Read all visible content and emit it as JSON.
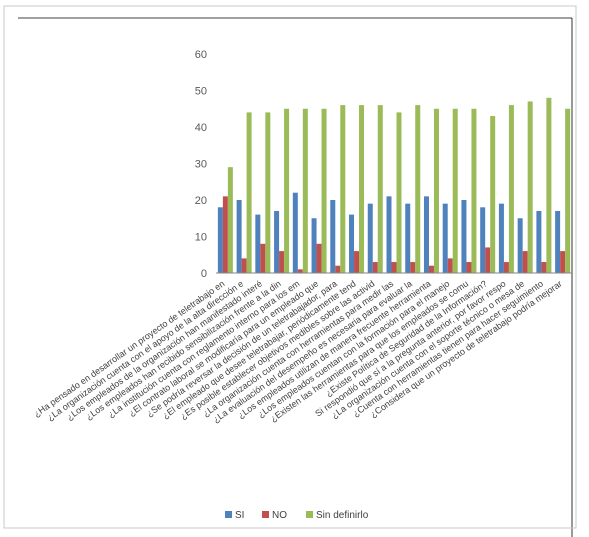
{
  "chart_data": {
    "type": "bar",
    "categories": [
      "¿Ha pensado en desarrollar un proyecto de teletrabajo en",
      "¿La organización cuenta con el apoyo de la alta dirección e",
      "¿Los empleados de la organización han manifestado interé",
      "¿Los empleados han recibido sensibilización frente a la din",
      "¿La institución cuenta con reglamento interno para los em",
      "¿El contrato laboral se modificaría para un empleado que",
      "¿Se podría reversar la decisión de un teletrabajador, para",
      "¿El empleado que desee teletrabajar, periódicamente tend",
      "¿Es posible establecer objetivos medibles sobre las activid",
      "¿La organización cuenta con herramientas para medir las",
      "¿La evaluación del desempeño es necesaria para evaluar la",
      "¿Los empleados utilizan de manera frecuente herramienta",
      "¿Los empleados cuentan con la formación para el manejo",
      "¿Existen las herramientas para que los empleados se comu",
      "¿Existe Política de Seguridad de la Información?",
      "Si respondió que sí a la pregunta anterior, por favor respo",
      "¿La organización cuenta con el soporte técnico o mesa de",
      "¿Cuenta con herramientas tienen para hacer seguimiento",
      "¿Considera que un proyecto de teletrabajo podría mejorar"
    ],
    "series": [
      {
        "name": "SI",
        "color": "#4F81BD",
        "values": [
          18,
          20,
          16,
          17,
          22,
          15,
          20,
          16,
          19,
          21,
          19,
          21,
          19,
          20,
          18,
          19,
          15,
          17,
          17
        ]
      },
      {
        "name": "NO",
        "color": "#C0504D",
        "values": [
          21,
          4,
          8,
          6,
          1,
          8,
          2,
          6,
          3,
          3,
          3,
          2,
          4,
          3,
          7,
          3,
          6,
          3,
          6
        ]
      },
      {
        "name": "Sin definirlo",
        "color": "#9BBB59",
        "values": [
          29,
          44,
          44,
          45,
          45,
          45,
          46,
          46,
          46,
          44,
          46,
          45,
          45,
          45,
          43,
          46,
          47,
          48,
          45
        ]
      }
    ],
    "yticks": [
      "0",
      "10",
      "20",
      "30",
      "40",
      "50",
      "60"
    ],
    "ylim": [
      0,
      60
    ],
    "grid": false,
    "legend_position": "bottom"
  }
}
